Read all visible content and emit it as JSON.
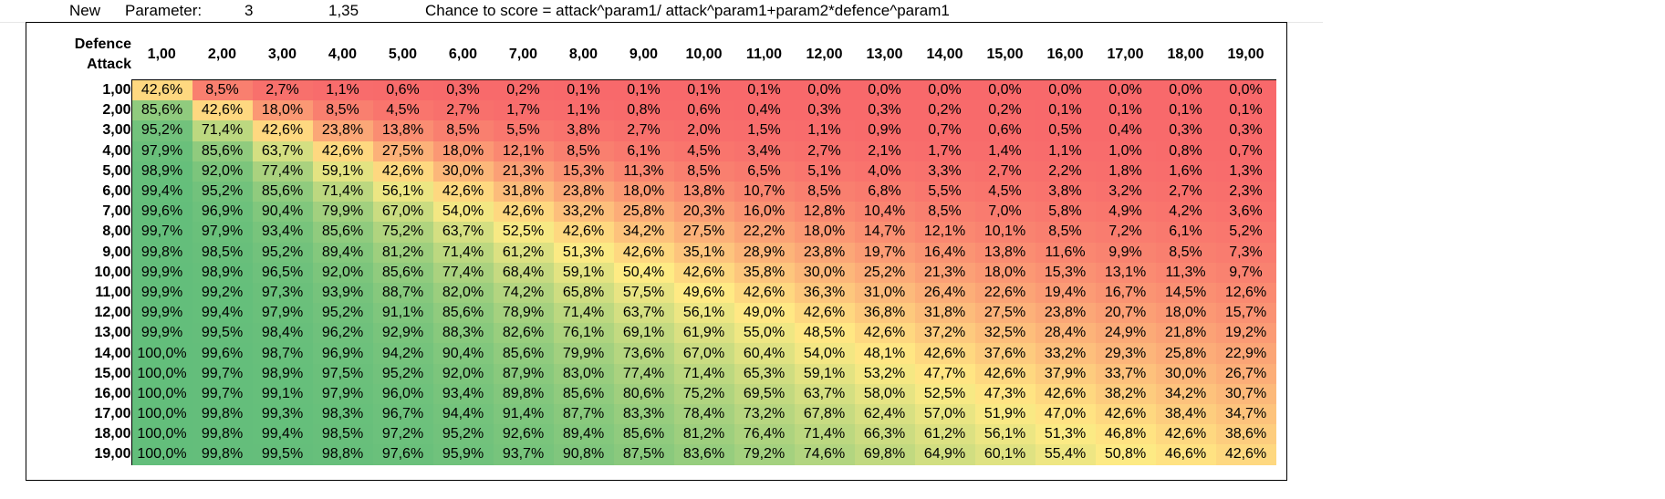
{
  "header": {
    "new_label": "New",
    "parameter_label": "Parameter:",
    "param1": "3",
    "param2": "1,35",
    "formula": "Chance to score = attack^param1/ attack^param1+param2*defence^param1"
  },
  "table": {
    "corner_top": "Defence",
    "corner_bottom": "Attack",
    "columns": [
      "1,00",
      "2,00",
      "3,00",
      "4,00",
      "5,00",
      "6,00",
      "7,00",
      "8,00",
      "9,00",
      "10,00",
      "11,00",
      "12,00",
      "13,00",
      "14,00",
      "15,00",
      "16,00",
      "17,00",
      "18,00",
      "19,00"
    ],
    "rows": [
      {
        "label": "1,00",
        "cells": [
          "42,6%",
          "8,5%",
          "2,7%",
          "1,1%",
          "0,6%",
          "0,3%",
          "0,2%",
          "0,1%",
          "0,1%",
          "0,1%",
          "0,1%",
          "0,0%",
          "0,0%",
          "0,0%",
          "0,0%",
          "0,0%",
          "0,0%",
          "0,0%",
          "0,0%"
        ]
      },
      {
        "label": "2,00",
        "cells": [
          "85,6%",
          "42,6%",
          "18,0%",
          "8,5%",
          "4,5%",
          "2,7%",
          "1,7%",
          "1,1%",
          "0,8%",
          "0,6%",
          "0,4%",
          "0,3%",
          "0,3%",
          "0,2%",
          "0,2%",
          "0,1%",
          "0,1%",
          "0,1%",
          "0,1%"
        ]
      },
      {
        "label": "3,00",
        "cells": [
          "95,2%",
          "71,4%",
          "42,6%",
          "23,8%",
          "13,8%",
          "8,5%",
          "5,5%",
          "3,8%",
          "2,7%",
          "2,0%",
          "1,5%",
          "1,1%",
          "0,9%",
          "0,7%",
          "0,6%",
          "0,5%",
          "0,4%",
          "0,3%",
          "0,3%"
        ]
      },
      {
        "label": "4,00",
        "cells": [
          "97,9%",
          "85,6%",
          "63,7%",
          "42,6%",
          "27,5%",
          "18,0%",
          "12,1%",
          "8,5%",
          "6,1%",
          "4,5%",
          "3,4%",
          "2,7%",
          "2,1%",
          "1,7%",
          "1,4%",
          "1,1%",
          "1,0%",
          "0,8%",
          "0,7%"
        ]
      },
      {
        "label": "5,00",
        "cells": [
          "98,9%",
          "92,0%",
          "77,4%",
          "59,1%",
          "42,6%",
          "30,0%",
          "21,3%",
          "15,3%",
          "11,3%",
          "8,5%",
          "6,5%",
          "5,1%",
          "4,0%",
          "3,3%",
          "2,7%",
          "2,2%",
          "1,8%",
          "1,6%",
          "1,3%"
        ]
      },
      {
        "label": "6,00",
        "cells": [
          "99,4%",
          "95,2%",
          "85,6%",
          "71,4%",
          "56,1%",
          "42,6%",
          "31,8%",
          "23,8%",
          "18,0%",
          "13,8%",
          "10,7%",
          "8,5%",
          "6,8%",
          "5,5%",
          "4,5%",
          "3,8%",
          "3,2%",
          "2,7%",
          "2,3%"
        ]
      },
      {
        "label": "7,00",
        "cells": [
          "99,6%",
          "96,9%",
          "90,4%",
          "79,9%",
          "67,0%",
          "54,0%",
          "42,6%",
          "33,2%",
          "25,8%",
          "20,3%",
          "16,0%",
          "12,8%",
          "10,4%",
          "8,5%",
          "7,0%",
          "5,8%",
          "4,9%",
          "4,2%",
          "3,6%"
        ]
      },
      {
        "label": "8,00",
        "cells": [
          "99,7%",
          "97,9%",
          "93,4%",
          "85,6%",
          "75,2%",
          "63,7%",
          "52,5%",
          "42,6%",
          "34,2%",
          "27,5%",
          "22,2%",
          "18,0%",
          "14,7%",
          "12,1%",
          "10,1%",
          "8,5%",
          "7,2%",
          "6,1%",
          "5,2%"
        ]
      },
      {
        "label": "9,00",
        "cells": [
          "99,8%",
          "98,5%",
          "95,2%",
          "89,4%",
          "81,2%",
          "71,4%",
          "61,2%",
          "51,3%",
          "42,6%",
          "35,1%",
          "28,9%",
          "23,8%",
          "19,7%",
          "16,4%",
          "13,8%",
          "11,6%",
          "9,9%",
          "8,5%",
          "7,3%"
        ]
      },
      {
        "label": "10,00",
        "cells": [
          "99,9%",
          "98,9%",
          "96,5%",
          "92,0%",
          "85,6%",
          "77,4%",
          "68,4%",
          "59,1%",
          "50,4%",
          "42,6%",
          "35,8%",
          "30,0%",
          "25,2%",
          "21,3%",
          "18,0%",
          "15,3%",
          "13,1%",
          "11,3%",
          "9,7%"
        ]
      },
      {
        "label": "11,00",
        "cells": [
          "99,9%",
          "99,2%",
          "97,3%",
          "93,9%",
          "88,7%",
          "82,0%",
          "74,2%",
          "65,8%",
          "57,5%",
          "49,6%",
          "42,6%",
          "36,3%",
          "31,0%",
          "26,4%",
          "22,6%",
          "19,4%",
          "16,7%",
          "14,5%",
          "12,6%"
        ]
      },
      {
        "label": "12,00",
        "cells": [
          "99,9%",
          "99,4%",
          "97,9%",
          "95,2%",
          "91,1%",
          "85,6%",
          "78,9%",
          "71,4%",
          "63,7%",
          "56,1%",
          "49,0%",
          "42,6%",
          "36,8%",
          "31,8%",
          "27,5%",
          "23,8%",
          "20,7%",
          "18,0%",
          "15,7%"
        ]
      },
      {
        "label": "13,00",
        "cells": [
          "99,9%",
          "99,5%",
          "98,4%",
          "96,2%",
          "92,9%",
          "88,3%",
          "82,6%",
          "76,1%",
          "69,1%",
          "61,9%",
          "55,0%",
          "48,5%",
          "42,6%",
          "37,2%",
          "32,5%",
          "28,4%",
          "24,9%",
          "21,8%",
          "19,2%"
        ]
      },
      {
        "label": "14,00",
        "cells": [
          "100,0%",
          "99,6%",
          "98,7%",
          "96,9%",
          "94,2%",
          "90,4%",
          "85,6%",
          "79,9%",
          "73,6%",
          "67,0%",
          "60,4%",
          "54,0%",
          "48,1%",
          "42,6%",
          "37,6%",
          "33,2%",
          "29,3%",
          "25,8%",
          "22,9%"
        ]
      },
      {
        "label": "15,00",
        "cells": [
          "100,0%",
          "99,7%",
          "98,9%",
          "97,5%",
          "95,2%",
          "92,0%",
          "87,9%",
          "83,0%",
          "77,4%",
          "71,4%",
          "65,3%",
          "59,1%",
          "53,2%",
          "47,7%",
          "42,6%",
          "37,9%",
          "33,7%",
          "30,0%",
          "26,7%"
        ]
      },
      {
        "label": "16,00",
        "cells": [
          "100,0%",
          "99,7%",
          "99,1%",
          "97,9%",
          "96,0%",
          "93,4%",
          "89,8%",
          "85,6%",
          "80,6%",
          "75,2%",
          "69,5%",
          "63,7%",
          "58,0%",
          "52,5%",
          "47,3%",
          "42,6%",
          "38,2%",
          "34,2%",
          "30,7%"
        ]
      },
      {
        "label": "17,00",
        "cells": [
          "100,0%",
          "99,8%",
          "99,3%",
          "98,3%",
          "96,7%",
          "94,4%",
          "91,4%",
          "87,7%",
          "83,3%",
          "78,4%",
          "73,2%",
          "67,8%",
          "62,4%",
          "57,0%",
          "51,9%",
          "47,0%",
          "42,6%",
          "38,4%",
          "34,7%"
        ]
      },
      {
        "label": "18,00",
        "cells": [
          "100,0%",
          "99,8%",
          "99,4%",
          "98,5%",
          "97,2%",
          "95,2%",
          "92,6%",
          "89,4%",
          "85,6%",
          "81,2%",
          "76,4%",
          "71,4%",
          "66,3%",
          "61,2%",
          "56,1%",
          "51,3%",
          "46,8%",
          "42,6%",
          "38,6%"
        ]
      },
      {
        "label": "19,00",
        "cells": [
          "100,0%",
          "99,8%",
          "99,5%",
          "98,8%",
          "97,6%",
          "95,9%",
          "93,7%",
          "90,8%",
          "87,5%",
          "83,6%",
          "79,2%",
          "74,6%",
          "69,8%",
          "64,9%",
          "60,1%",
          "55,4%",
          "50,8%",
          "46,6%",
          "42,6%"
        ]
      }
    ]
  },
  "colors": {
    "low": "#f8696b",
    "mid": "#ffeb84",
    "high": "#63be7b"
  }
}
